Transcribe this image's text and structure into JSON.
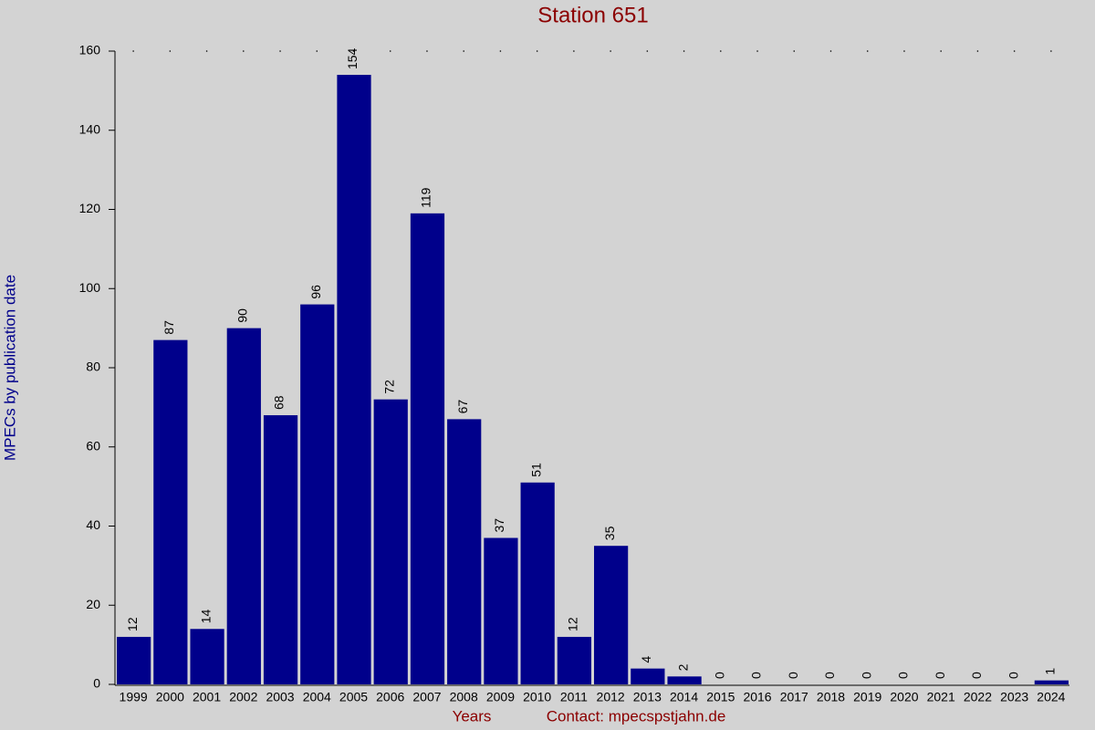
{
  "chart_data": {
    "type": "bar",
    "title": "Station 651",
    "x_label": "Years",
    "contact": "Contact: mpecspstjahn.de",
    "y_label": "MPECs by publication date",
    "categories": [
      "1999",
      "2000",
      "2001",
      "2002",
      "2003",
      "2004",
      "2005",
      "2006",
      "2007",
      "2008",
      "2009",
      "2010",
      "2011",
      "2012",
      "2013",
      "2014",
      "2015",
      "2016",
      "2017",
      "2018",
      "2019",
      "2020",
      "2021",
      "2022",
      "2023",
      "2024"
    ],
    "values": [
      12,
      87,
      14,
      90,
      68,
      96,
      154,
      72,
      119,
      67,
      37,
      51,
      12,
      35,
      4,
      2,
      0,
      0,
      0,
      0,
      0,
      0,
      0,
      0,
      0,
      1
    ],
    "color": "#00008b",
    "ylim": [
      0,
      160
    ],
    "yticks": [
      0,
      20,
      40,
      60,
      80,
      100,
      120,
      140,
      160
    ]
  }
}
